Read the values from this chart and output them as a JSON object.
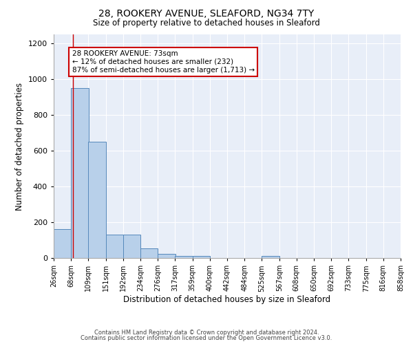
{
  "title1": "28, ROOKERY AVENUE, SLEAFORD, NG34 7TY",
  "title2": "Size of property relative to detached houses in Sleaford",
  "xlabel": "Distribution of detached houses by size in Sleaford",
  "ylabel": "Number of detached properties",
  "annotation_line1": "28 ROOKERY AVENUE: 73sqm",
  "annotation_line2": "← 12% of detached houses are smaller (232)",
  "annotation_line3": "87% of semi-detached houses are larger (1,713) →",
  "property_value": 73,
  "bin_edges": [
    26,
    68,
    109,
    151,
    192,
    234,
    276,
    317,
    359,
    400,
    442,
    484,
    525,
    567,
    608,
    650,
    692,
    733,
    775,
    816,
    858
  ],
  "bar_heights": [
    160,
    950,
    650,
    130,
    130,
    55,
    25,
    12,
    10,
    0,
    0,
    0,
    10,
    0,
    0,
    0,
    0,
    0,
    0,
    0
  ],
  "bar_color": "#b8d0ea",
  "bar_edge_color": "#5588bb",
  "vline_color": "#cc0000",
  "background_color": "#e8eef8",
  "annotation_box_color": "#ffffff",
  "annotation_box_edge": "#cc0000",
  "ylim": [
    0,
    1250
  ],
  "yticks": [
    0,
    200,
    400,
    600,
    800,
    1000,
    1200
  ],
  "footer1": "Contains HM Land Registry data © Crown copyright and database right 2024.",
  "footer2": "Contains public sector information licensed under the Open Government Licence v3.0."
}
